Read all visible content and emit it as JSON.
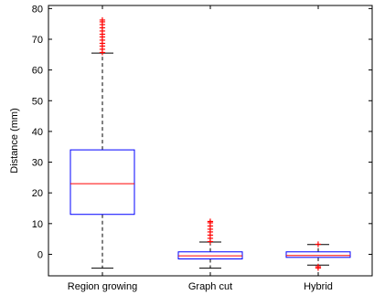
{
  "chart_data": {
    "type": "box",
    "ylabel": "Distance (mm)",
    "ylim": [
      -7,
      81
    ],
    "yticks": [
      0,
      10,
      20,
      30,
      40,
      50,
      60,
      70,
      80
    ],
    "categories": [
      "Region growing",
      "Graph cut",
      "Hybrid"
    ],
    "boxes": [
      {
        "category": "Region growing",
        "whisker_low": -4.5,
        "q1": 13,
        "median": 23,
        "q3": 34,
        "whisker_high": 65.5,
        "outliers": [
          66,
          67,
          68,
          69,
          70,
          71,
          72,
          73,
          74,
          75,
          76,
          76.5
        ]
      },
      {
        "category": "Graph cut",
        "whisker_low": -4.5,
        "q1": -1.5,
        "median": -0.5,
        "q3": 0.8,
        "whisker_high": 4,
        "outliers": [
          4.5,
          5.5,
          6.5,
          7.5,
          8.5,
          9.5,
          10.5,
          11
        ]
      },
      {
        "category": "Hybrid",
        "whisker_low": -3.5,
        "q1": -1,
        "median": -0.4,
        "q3": 0.8,
        "whisker_high": 3.2,
        "outliers": [
          3.6,
          -3.8,
          -4.2
        ]
      }
    ],
    "colors": {
      "box": "#0000ff",
      "median": "#ff0000",
      "whisker": "#000000",
      "outlier": "#ff0000"
    },
    "grid": false,
    "legend": "none"
  }
}
